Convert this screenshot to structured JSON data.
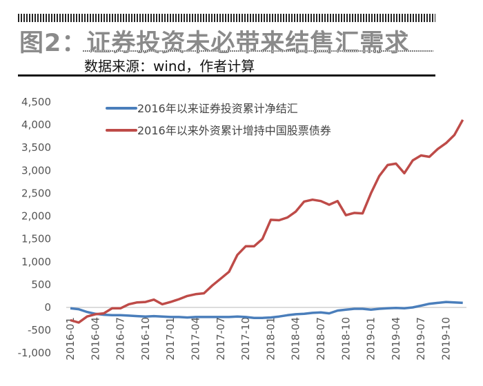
{
  "header": {
    "title": "图2：证券投资未必带来结售汇需求",
    "source": "数据来源：wind，作者计算"
  },
  "chart_data": {
    "type": "line",
    "title": "",
    "xlabel": "",
    "ylabel": "",
    "ylim": [
      -1000,
      4500
    ],
    "yticks": [
      -1000,
      -500,
      0,
      500,
      1000,
      1500,
      2000,
      2500,
      3000,
      3500,
      4000,
      4500
    ],
    "ytick_labels": [
      "-1,000",
      "-500",
      "0",
      "500",
      "1,000",
      "1,500",
      "2,000",
      "2,500",
      "3,000",
      "3,500",
      "4,000",
      "4,500"
    ],
    "xtick_labels": [
      "2016-01",
      "2016-04",
      "2016-07",
      "2016-10",
      "2017-01",
      "2017-04",
      "2017-07",
      "2017-10",
      "2018-01",
      "2018-04",
      "2018-07",
      "2018-10",
      "2019-01",
      "2019-04",
      "2019-07",
      "2019-10"
    ],
    "x_start": "2016-01",
    "x_end": "2019-12",
    "grid": "zero line only",
    "legend_position": "top-left",
    "series": [
      {
        "name": "2016年以来证券投资累计净结汇",
        "color": "#4a7ebb",
        "values": [
          -20,
          -40,
          -100,
          -140,
          -160,
          -170,
          -170,
          -180,
          -190,
          -200,
          -190,
          -200,
          -210,
          -210,
          -220,
          -210,
          -210,
          -210,
          -210,
          -210,
          -200,
          -210,
          -230,
          -230,
          -220,
          -200,
          -170,
          -150,
          -140,
          -120,
          -110,
          -130,
          -70,
          -50,
          -30,
          -30,
          -50,
          -30,
          -20,
          -10,
          -20,
          0,
          40,
          80,
          100,
          120,
          110,
          100
        ]
      },
      {
        "name": "2016年以来外资累计增持中国股票债券",
        "color": "#be4b48",
        "values": [
          -280,
          -330,
          -200,
          -150,
          -130,
          -20,
          -20,
          70,
          110,
          120,
          170,
          70,
          120,
          180,
          250,
          290,
          310,
          480,
          630,
          780,
          1150,
          1340,
          1340,
          1500,
          1920,
          1910,
          1970,
          2100,
          2320,
          2360,
          2330,
          2250,
          2330,
          2020,
          2070,
          2060,
          2500,
          2880,
          3120,
          3150,
          2940,
          3220,
          3330,
          3300,
          3470,
          3600,
          3780,
          4110
        ]
      }
    ]
  }
}
